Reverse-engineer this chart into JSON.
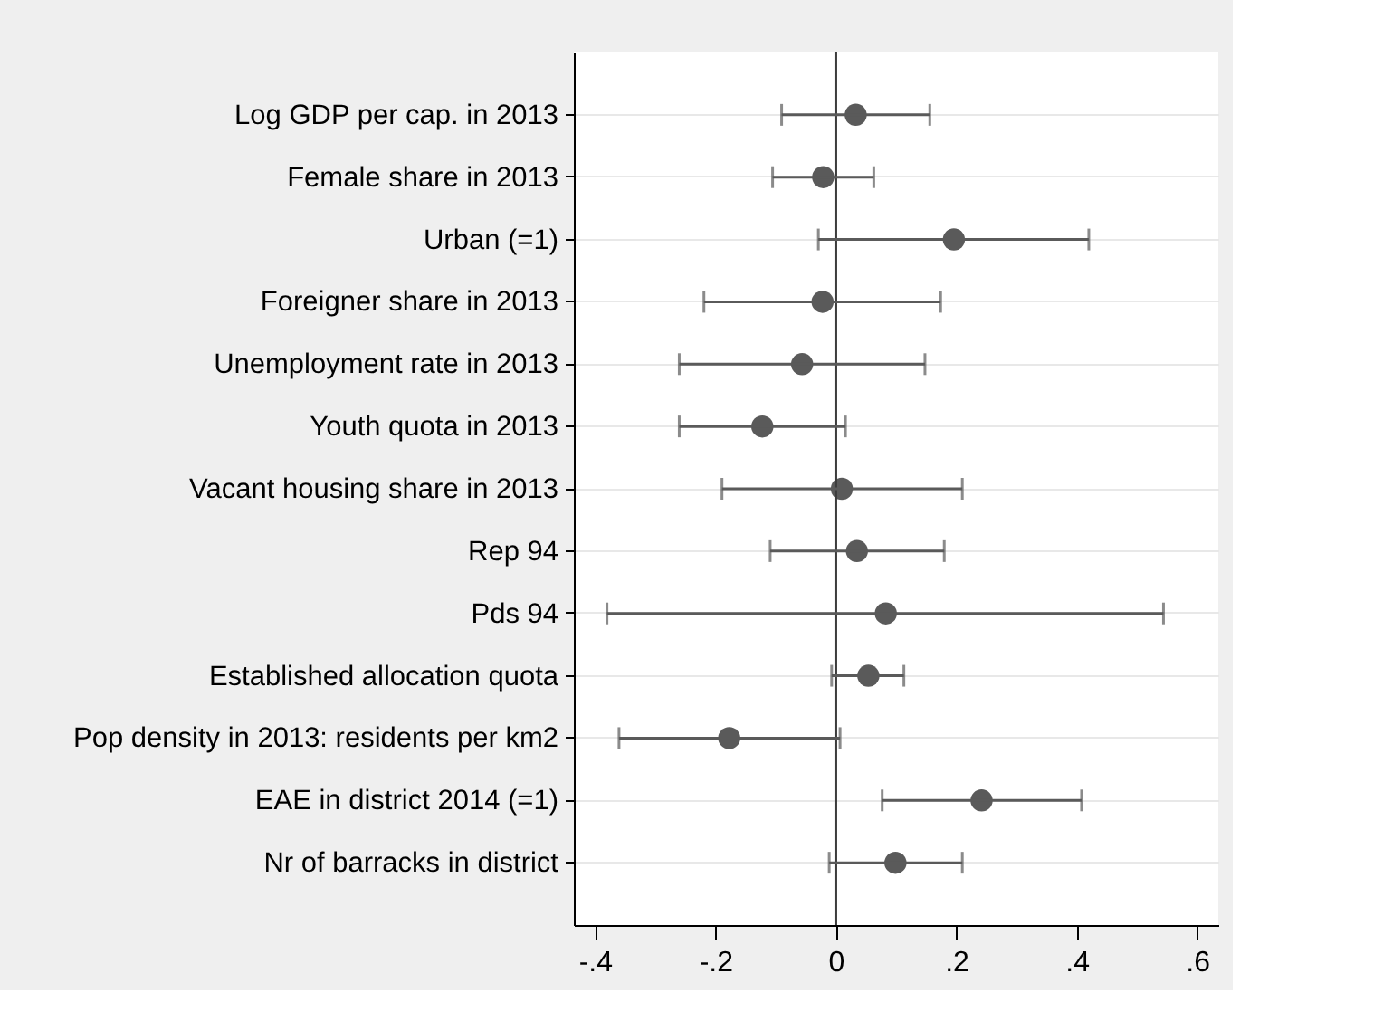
{
  "chart_data": {
    "type": "scatter",
    "orientation": "horizontal",
    "marker": "circle",
    "grid": "y",
    "color": "#5a5a5a",
    "categories": [
      "Log GDP per cap. in 2013",
      "Female share in 2013",
      "Urban (=1)",
      "Foreigner share in 2013",
      "Unemployment rate in 2013",
      "Youth quota in 2013",
      "Vacant housing share in 2013",
      "Rep 94",
      "Pds 94",
      "Established allocation quota",
      "Pop density in 2013: residents per km2",
      "EAE in district 2014 (=1)",
      "Nr of barracks in district"
    ],
    "values": [
      0.033,
      -0.021,
      0.196,
      -0.022,
      -0.056,
      -0.122,
      0.01,
      0.035,
      0.083,
      0.054,
      -0.177,
      0.242,
      0.099
    ],
    "errors": [
      [
        -0.09,
        0.156
      ],
      [
        -0.105,
        0.063
      ],
      [
        -0.029,
        0.42
      ],
      [
        -0.219,
        0.174
      ],
      [
        -0.26,
        0.148
      ],
      [
        -0.26,
        0.016
      ],
      [
        -0.189,
        0.21
      ],
      [
        -0.109,
        0.18
      ],
      [
        -0.38,
        0.544
      ],
      [
        -0.007,
        0.113
      ],
      [
        -0.36,
        0.007
      ],
      [
        0.077,
        0.408
      ],
      [
        -0.011,
        0.21
      ]
    ],
    "xlim": [
      -0.435,
      0.635
    ],
    "xticks": [
      {
        "value": -0.4,
        "label": "-.4"
      },
      {
        "value": -0.2,
        "label": "-.2"
      },
      0,
      {
        "value": 0.2,
        "label": ".2"
      },
      {
        "value": 0.4,
        "label": ".4"
      },
      {
        "value": 0.6,
        "label": ".6"
      }
    ],
    "ref_lines": [
      {
        "axis": "x",
        "value": 0,
        "color": "#3c3c3c"
      }
    ]
  }
}
